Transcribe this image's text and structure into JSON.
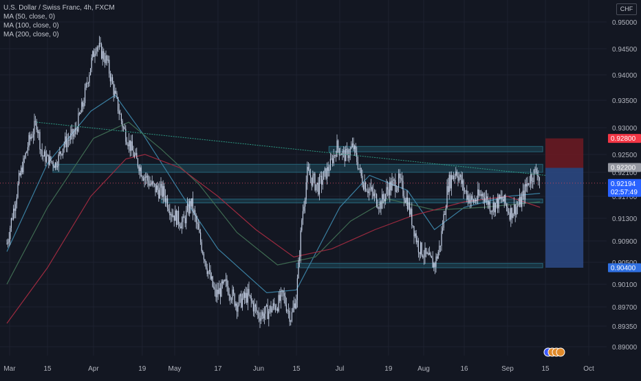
{
  "colors": {
    "background": "#131722",
    "grid": "#1e2230",
    "axis_text": "#b2b5be",
    "candle": "#c7d3e8",
    "ma50": "#3a7fa1",
    "ma100": "#3f6b52",
    "ma200": "#9c2a3f",
    "trendline": "#2f9c86",
    "zone": "#26667a",
    "stop_box": "#6e1a22",
    "target_box": "#2d4a86",
    "dotted_price": "#c1435a"
  },
  "header": {
    "title": "U.S. Dollar / Swiss Franc, 4h, FXCM",
    "indicators": [
      "MA (50, close, 0)",
      "MA (100, close, 0)",
      "MA (200, close, 0)"
    ],
    "currency": "CHF"
  },
  "badges": {
    "stop": "0.92800",
    "entry": "0.92200",
    "current": "0.92194",
    "countdown": "02:57:49",
    "target": "0.90400"
  },
  "chart_data": {
    "type": "candlestick",
    "title": "U.S. Dollar / Swiss Franc, 4h, FXCM",
    "x_tick_labels": [
      "Mar",
      "15",
      "Apr",
      "19",
      "May",
      "17",
      "Jun",
      "15",
      "Jul",
      "19",
      "Aug",
      "16",
      "Sep",
      "15",
      "Oct"
    ],
    "y_tick_labels": [
      "0.95000",
      "0.94500",
      "0.94000",
      "0.93500",
      "0.93000",
      "0.92500",
      "0.92100",
      "0.91700",
      "0.91300",
      "0.90900",
      "0.90500",
      "0.90100",
      "0.89700",
      "0.89350",
      "0.89000"
    ],
    "ylim": [
      0.889,
      0.952
    ],
    "price_path": [
      [
        "2021-02-28",
        0.9085
      ],
      [
        "2021-03-04",
        0.9185
      ],
      [
        "2021-03-08",
        0.9272
      ],
      [
        "2021-03-11",
        0.931
      ],
      [
        "2021-03-13",
        0.9248
      ],
      [
        "2021-03-18",
        0.9228
      ],
      [
        "2021-03-21",
        0.927
      ],
      [
        "2021-03-25",
        0.9288
      ],
      [
        "2021-03-28",
        0.934
      ],
      [
        "2021-03-31",
        0.942
      ],
      [
        "2021-04-02",
        0.946
      ],
      [
        "2021-04-06",
        0.9425
      ],
      [
        "2021-04-09",
        0.9358
      ],
      [
        "2021-04-12",
        0.93
      ],
      [
        "2021-04-15",
        0.926
      ],
      [
        "2021-04-19",
        0.921
      ],
      [
        "2021-04-23",
        0.9185
      ],
      [
        "2021-04-27",
        0.9175
      ],
      [
        "2021-04-30",
        0.914
      ],
      [
        "2021-05-04",
        0.912
      ],
      [
        "2021-05-07",
        0.916
      ],
      [
        "2021-05-10",
        0.91
      ],
      [
        "2021-05-13",
        0.904
      ],
      [
        "2021-05-16",
        0.899
      ],
      [
        "2021-05-20",
        0.901
      ],
      [
        "2021-05-24",
        0.8975
      ],
      [
        "2021-05-28",
        0.899
      ],
      [
        "2021-06-01",
        0.8955
      ],
      [
        "2021-06-04",
        0.896
      ],
      [
        "2021-06-08",
        0.8975
      ],
      [
        "2021-06-10",
        0.899
      ],
      [
        "2021-06-13",
        0.895
      ],
      [
        "2021-06-15",
        0.899
      ],
      [
        "2021-06-17",
        0.913
      ],
      [
        "2021-06-19",
        0.921
      ],
      [
        "2021-06-23",
        0.9185
      ],
      [
        "2021-06-27",
        0.922
      ],
      [
        "2021-06-30",
        0.9265
      ],
      [
        "2021-07-03",
        0.9245
      ],
      [
        "2021-07-06",
        0.9265
      ],
      [
        "2021-07-09",
        0.92
      ],
      [
        "2021-07-12",
        0.918
      ],
      [
        "2021-07-16",
        0.9155
      ],
      [
        "2021-07-19",
        0.9185
      ],
      [
        "2021-07-23",
        0.9195
      ],
      [
        "2021-07-26",
        0.916
      ],
      [
        "2021-07-30",
        0.908
      ],
      [
        "2021-08-02",
        0.906
      ],
      [
        "2021-08-05",
        0.9045
      ],
      [
        "2021-08-07",
        0.908
      ],
      [
        "2021-08-10",
        0.919
      ],
      [
        "2021-08-13",
        0.9215
      ],
      [
        "2021-08-16",
        0.918
      ],
      [
        "2021-08-19",
        0.916
      ],
      [
        "2021-08-23",
        0.9175
      ],
      [
        "2021-08-26",
        0.915
      ],
      [
        "2021-08-30",
        0.9165
      ],
      [
        "2021-09-02",
        0.914
      ],
      [
        "2021-09-06",
        0.916
      ],
      [
        "2021-09-09",
        0.92
      ],
      [
        "2021-09-12",
        0.9215
      ],
      [
        "2021-09-13",
        0.9192
      ]
    ],
    "moving_averages": [
      {
        "name": "MA (50, close, 0)",
        "values": [
          [
            "2021-02-28",
            0.907
          ],
          [
            "2021-03-15",
            0.923
          ],
          [
            "2021-03-31",
            0.933
          ],
          [
            "2021-04-09",
            0.936
          ],
          [
            "2021-04-19",
            0.929
          ],
          [
            "2021-05-04",
            0.917
          ],
          [
            "2021-05-17",
            0.9075
          ],
          [
            "2021-06-04",
            0.8995
          ],
          [
            "2021-06-15",
            0.9
          ],
          [
            "2021-07-01",
            0.915
          ],
          [
            "2021-07-12",
            0.9205
          ],
          [
            "2021-07-26",
            0.918
          ],
          [
            "2021-08-05",
            0.911
          ],
          [
            "2021-08-16",
            0.915
          ],
          [
            "2021-09-01",
            0.917
          ],
          [
            "2021-09-13",
            0.9175
          ]
        ]
      },
      {
        "name": "MA (100, close, 0)",
        "values": [
          [
            "2021-02-28",
            0.901
          ],
          [
            "2021-03-15",
            0.915
          ],
          [
            "2021-04-01",
            0.928
          ],
          [
            "2021-04-14",
            0.931
          ],
          [
            "2021-04-26",
            0.926
          ],
          [
            "2021-05-10",
            0.919
          ],
          [
            "2021-05-24",
            0.9105
          ],
          [
            "2021-06-08",
            0.9045
          ],
          [
            "2021-06-22",
            0.906
          ],
          [
            "2021-07-05",
            0.9125
          ],
          [
            "2021-07-19",
            0.9165
          ],
          [
            "2021-08-05",
            0.9145
          ],
          [
            "2021-08-23",
            0.915
          ],
          [
            "2021-09-13",
            0.916
          ]
        ]
      },
      {
        "name": "MA (200, close, 0)",
        "values": [
          [
            "2021-02-28",
            0.894
          ],
          [
            "2021-03-15",
            0.904
          ],
          [
            "2021-03-31",
            0.917
          ],
          [
            "2021-04-13",
            0.924
          ],
          [
            "2021-04-20",
            0.925
          ],
          [
            "2021-05-03",
            0.922
          ],
          [
            "2021-05-17",
            0.917
          ],
          [
            "2021-05-31",
            0.911
          ],
          [
            "2021-06-14",
            0.906
          ],
          [
            "2021-06-28",
            0.9075
          ],
          [
            "2021-07-14",
            0.911
          ],
          [
            "2021-07-28",
            0.9135
          ],
          [
            "2021-08-16",
            0.916
          ],
          [
            "2021-09-01",
            0.917
          ],
          [
            "2021-09-13",
            0.915
          ]
        ]
      }
    ],
    "trendline": [
      [
        "2021-03-11",
        0.931
      ],
      [
        "2021-09-15",
        0.9205
      ]
    ],
    "horizontal_zones": [
      {
        "from": [
          "2021-03-17",
          0.921
        ],
        "to": [
          "2021-09-14",
          0.9228
        ]
      },
      {
        "from": [
          "2021-06-27",
          0.9255
        ],
        "to": [
          "2021-09-14",
          0.9265
        ]
      },
      {
        "from": [
          "2021-04-26",
          0.9158
        ],
        "to": [
          "2021-09-14",
          0.9165
        ]
      },
      {
        "from": [
          "2021-06-15",
          0.904
        ],
        "to": [
          "2021-09-14",
          0.9048
        ]
      }
    ],
    "position": {
      "entry": 0.922,
      "stop": 0.928,
      "target": 0.904,
      "start": "2021-09-15",
      "end": "2021-09-29"
    }
  }
}
